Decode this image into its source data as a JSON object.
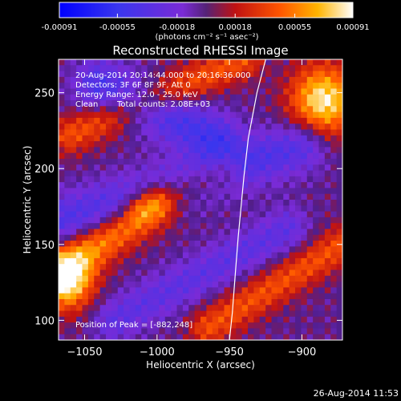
{
  "chart_data": {
    "type": "heatmap",
    "title": "Reconstructed RHESSI Image",
    "xlabel": "Heliocentric X (arcsec)",
    "ylabel": "Heliocentric Y (arcsec)",
    "xlim": [
      -1068,
      -872
    ],
    "ylim": [
      87,
      272
    ],
    "xticks": [
      -1050,
      -1000,
      -950,
      -900
    ],
    "yticks": [
      100,
      150,
      200,
      250
    ],
    "colorbar": {
      "ticks": [
        "-0.00091",
        "-0.00055",
        "-0.00018",
        "0.00018",
        "0.00055",
        "0.00091"
      ],
      "range": [
        -0.00091,
        0.00091
      ],
      "units": "(photons cm⁻² s⁻¹ asec⁻²)"
    },
    "info": {
      "time": "20-Aug-2014 20:14:44.000 to 20:16:36.000",
      "detectors": "Detectors: 3F 6F 8F 9F, Att 0",
      "energy": "Energy Range: 12.0 - 25.0 keV",
      "clean": "Clean",
      "counts": "Total counts: 2.08E+03"
    },
    "peak_text": "Position of Peak = [-882,248]",
    "peak": [
      -882,
      248
    ],
    "limb": [
      [
        -925,
        272
      ],
      [
        -931,
        250
      ],
      [
        -937,
        220
      ],
      [
        -940,
        195
      ],
      [
        -942,
        175
      ],
      [
        -944,
        155
      ],
      [
        -946,
        130
      ],
      [
        -948,
        105
      ],
      [
        -950,
        87
      ]
    ],
    "features": [
      {
        "kind": "ridge",
        "from": [
          -1068,
          133
        ],
        "to": [
          -1002,
          174
        ],
        "amp": 0.65,
        "width": 10
      },
      {
        "kind": "ridge",
        "from": [
          -1010,
          175
        ],
        "to": [
          -955,
          198
        ],
        "amp": 0.4,
        "width": 8
      },
      {
        "kind": "ridge",
        "from": [
          -1060,
          222
        ],
        "to": [
          -940,
          272
        ],
        "amp": 0.45,
        "width": 9
      },
      {
        "kind": "ridge",
        "from": [
          -965,
          95
        ],
        "to": [
          -872,
          150
        ],
        "amp": 0.45,
        "width": 9
      },
      {
        "kind": "blob",
        "at": [
          -885,
          245
        ],
        "amp": 0.95,
        "radius": 16
      },
      {
        "kind": "blob",
        "at": [
          -1062,
          125
        ],
        "amp": 0.85,
        "radius": 13
      },
      {
        "kind": "trough",
        "from": [
          -1068,
          165
        ],
        "to": [
          -900,
          215
        ],
        "amp": -0.45,
        "width": 12
      },
      {
        "kind": "trough",
        "from": [
          -1040,
          255
        ],
        "to": [
          -960,
          220
        ],
        "amp": -0.5,
        "width": 12
      },
      {
        "kind": "trough",
        "from": [
          -1030,
          100
        ],
        "to": [
          -910,
          160
        ],
        "amp": -0.35,
        "width": 10
      }
    ]
  },
  "footer": {
    "date": "26-Aug-2014 11:53"
  }
}
